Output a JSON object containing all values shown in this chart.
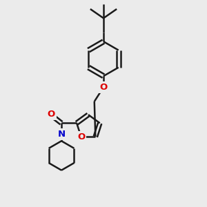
{
  "background_color": "#ebebeb",
  "bond_color": "#1a1a1a",
  "o_color": "#dd0000",
  "n_color": "#0000cc",
  "bond_width": 1.8,
  "figsize": [
    3.0,
    3.0
  ],
  "dpi": 100,
  "xlim": [
    0,
    10
  ],
  "ylim": [
    0,
    10
  ]
}
